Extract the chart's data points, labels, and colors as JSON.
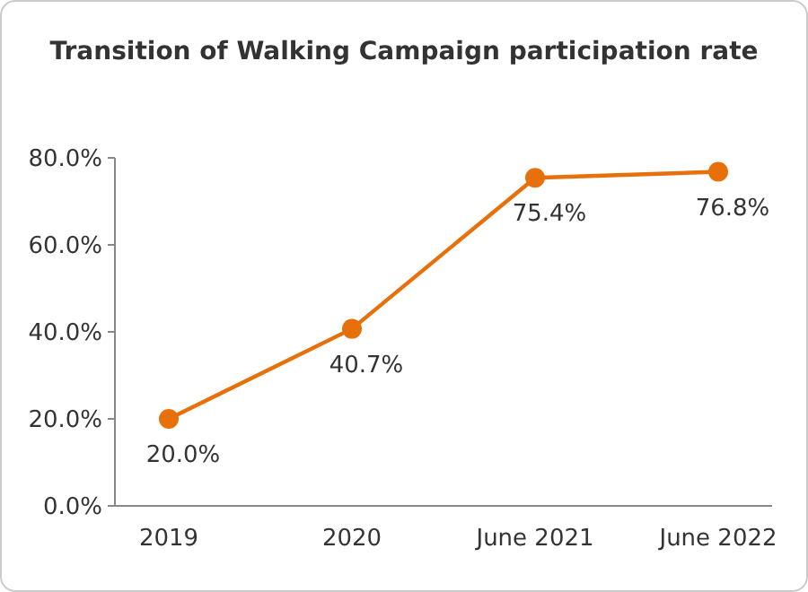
{
  "chart_data": {
    "type": "line",
    "title": "Transition of Walking Campaign participation rate",
    "categories": [
      "2019",
      "2020",
      "June 2021",
      "June 2022"
    ],
    "series": [
      {
        "color": "#e8700a",
        "values": [
          20.0,
          40.7,
          75.4,
          76.8
        ],
        "value_labels": [
          "20.0%",
          "40.7%",
          "75.4%",
          "76.8%"
        ]
      }
    ],
    "ylim": [
      0,
      80
    ],
    "yticks": [
      {
        "value": 0,
        "label": "0.0%"
      },
      {
        "value": 20,
        "label": "20.0%"
      },
      {
        "value": 40,
        "label": "40.0%"
      },
      {
        "value": 60,
        "label": "60.0%"
      },
      {
        "value": 80,
        "label": "80.0%"
      }
    ],
    "marker": "circle",
    "line_style": "solid"
  }
}
